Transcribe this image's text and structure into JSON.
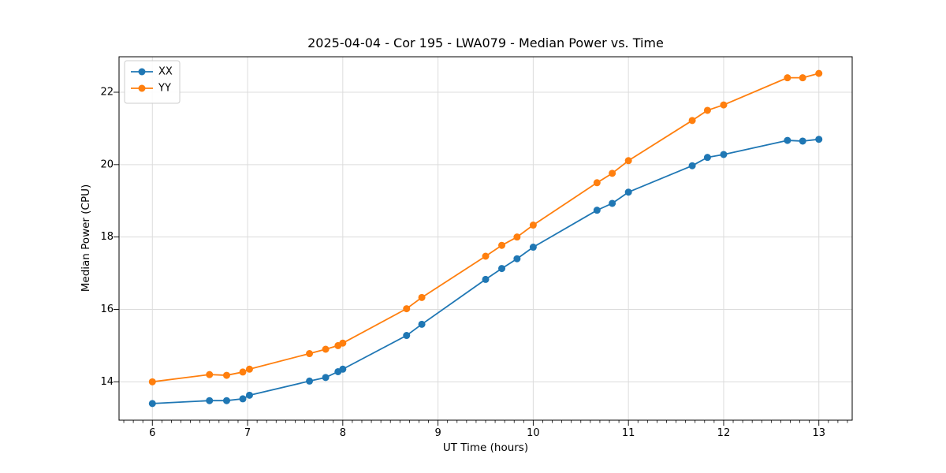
{
  "chart_data": {
    "type": "line",
    "title": "2025-04-04 - Cor 195 - LWA079 - Median Power vs. Time",
    "xlabel": "UT Time (hours)",
    "ylabel": "Median Power (CPU)",
    "xlim": [
      5.65,
      13.35
    ],
    "ylim": [
      12.94,
      22.98
    ],
    "xticks": [
      6,
      7,
      8,
      9,
      10,
      11,
      12,
      13
    ],
    "yticks": [
      14,
      16,
      18,
      20,
      22
    ],
    "x_minor_tick_step": 0.1,
    "grid": true,
    "legend_position": "upper left",
    "x": [
      6.0,
      6.6,
      6.78,
      6.95,
      7.02,
      7.65,
      7.82,
      7.95,
      8.0,
      8.67,
      8.83,
      9.5,
      9.67,
      9.83,
      10.0,
      10.67,
      10.83,
      11.0,
      11.67,
      11.83,
      12.0,
      12.67,
      12.83,
      13.0
    ],
    "series": [
      {
        "name": "XX",
        "color": "#1f77b4",
        "values": [
          13.4,
          13.48,
          13.48,
          13.53,
          13.63,
          14.02,
          14.12,
          14.28,
          14.35,
          15.28,
          15.59,
          16.83,
          17.13,
          17.4,
          17.72,
          18.74,
          18.93,
          19.24,
          19.97,
          20.2,
          20.28,
          20.67,
          20.65,
          20.7
        ]
      },
      {
        "name": "YY",
        "color": "#ff7f0e",
        "values": [
          14.0,
          14.2,
          14.18,
          14.27,
          14.35,
          14.78,
          14.9,
          15.0,
          15.07,
          16.02,
          16.33,
          17.47,
          17.77,
          18.0,
          18.33,
          19.5,
          19.76,
          20.11,
          21.22,
          21.5,
          21.65,
          22.4,
          22.4,
          22.52
        ]
      }
    ],
    "colors": {
      "background": "#ffffff",
      "grid": "#dcdcdc",
      "spine": "#000000",
      "tick_label": "#000000",
      "legend_border": "#cccccc"
    }
  }
}
